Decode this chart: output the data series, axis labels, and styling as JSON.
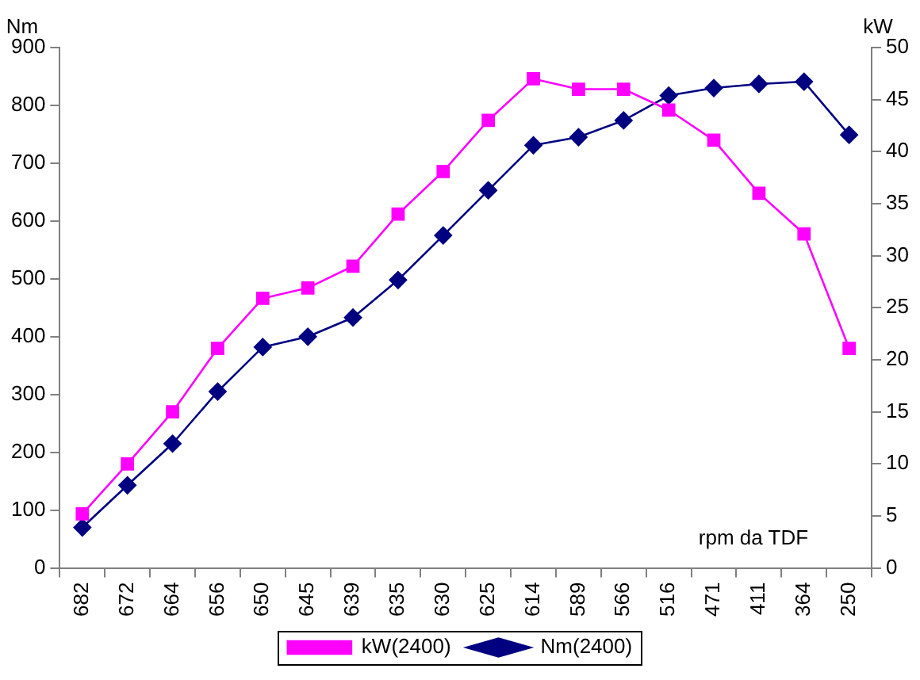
{
  "chart_data": {
    "type": "line",
    "ylabel": "Nm",
    "y2label": "kW",
    "annotations": [
      "rpm da TDF"
    ],
    "categories": [
      "682",
      "672",
      "664",
      "656",
      "650",
      "645",
      "639",
      "635",
      "630",
      "625",
      "614",
      "589",
      "566",
      "516",
      "471",
      "411",
      "364",
      "250"
    ],
    "series": [
      {
        "name": "kW(2400)",
        "color": "#ff00ff",
        "axis": "y2",
        "marker": "square",
        "values": [
          5.2,
          10,
          15,
          21.1,
          25.9,
          26.9,
          29,
          34,
          38.1,
          43,
          47,
          46,
          46,
          44,
          41.1,
          36,
          32.1,
          21.1
        ]
      },
      {
        "name": "Nm(2400)",
        "color": "#000080",
        "axis": "y",
        "marker": "diamond",
        "values": [
          70,
          143,
          215,
          305,
          382,
          400,
          433,
          498,
          575,
          653,
          731,
          745,
          774,
          817,
          830,
          837,
          841,
          749
        ]
      }
    ],
    "ylim": [
      0,
      900
    ],
    "yticks": [
      0,
      100,
      200,
      300,
      400,
      500,
      600,
      700,
      800,
      900
    ],
    "y2lim": [
      0,
      50
    ],
    "y2ticks": [
      0,
      5,
      10,
      15,
      20,
      25,
      30,
      35,
      40,
      45,
      50
    ],
    "grid": false,
    "legend": "bottom",
    "line_style": "solid"
  }
}
